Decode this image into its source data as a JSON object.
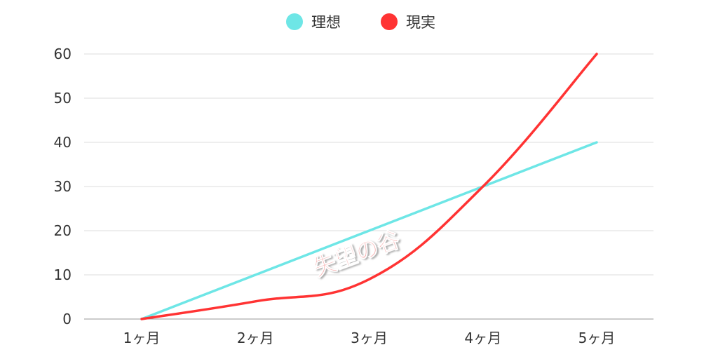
{
  "chart_data": {
    "type": "line",
    "title": "",
    "xlabel": "",
    "ylabel": "",
    "categories": [
      "1ヶ月",
      "2ヶ月",
      "3ヶ月",
      "4ヶ月",
      "5ヶ月"
    ],
    "ylim": [
      0,
      60
    ],
    "yticks": [
      0,
      10,
      20,
      30,
      40,
      50,
      60
    ],
    "grid": true,
    "legend_position": "top",
    "series": [
      {
        "name": "理想",
        "color": "#6ee6e6",
        "values": [
          0,
          10,
          20,
          30,
          40
        ]
      },
      {
        "name": "現実",
        "color": "#ff3333",
        "values": [
          0,
          4,
          9,
          30,
          60
        ]
      }
    ],
    "annotations": [
      {
        "text": "失望の谷",
        "color": "#f07878"
      }
    ]
  }
}
